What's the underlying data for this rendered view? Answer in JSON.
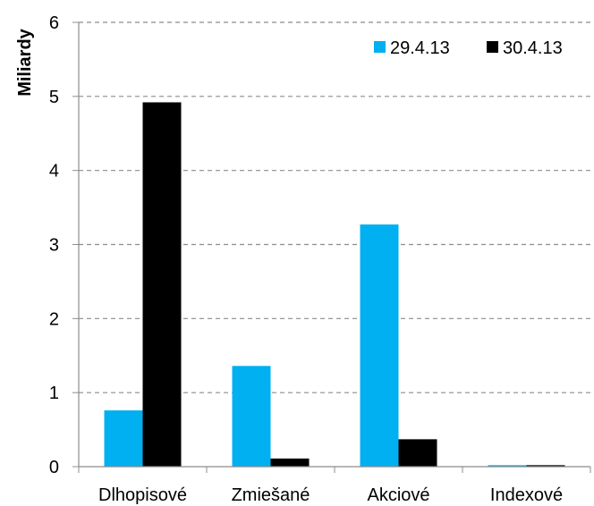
{
  "chart_data": {
    "type": "bar",
    "title": "",
    "xlabel": "",
    "ylabel": "Miliardy",
    "ylim": [
      0,
      6
    ],
    "yticks": [
      "0",
      "1",
      "2",
      "3",
      "4",
      "5",
      "6"
    ],
    "grid": true,
    "legend_position": "top-right",
    "categories": [
      "Dlhopisové",
      "Zmiešané",
      "Akciové",
      "Indexové"
    ],
    "series": [
      {
        "name": "29.4.13",
        "color": "#00b0f0",
        "values": [
          0.76,
          1.36,
          3.27,
          0.02
        ]
      },
      {
        "name": "30.4.13",
        "color": "#000000",
        "values": [
          4.92,
          0.11,
          0.37,
          0.02
        ]
      }
    ]
  }
}
